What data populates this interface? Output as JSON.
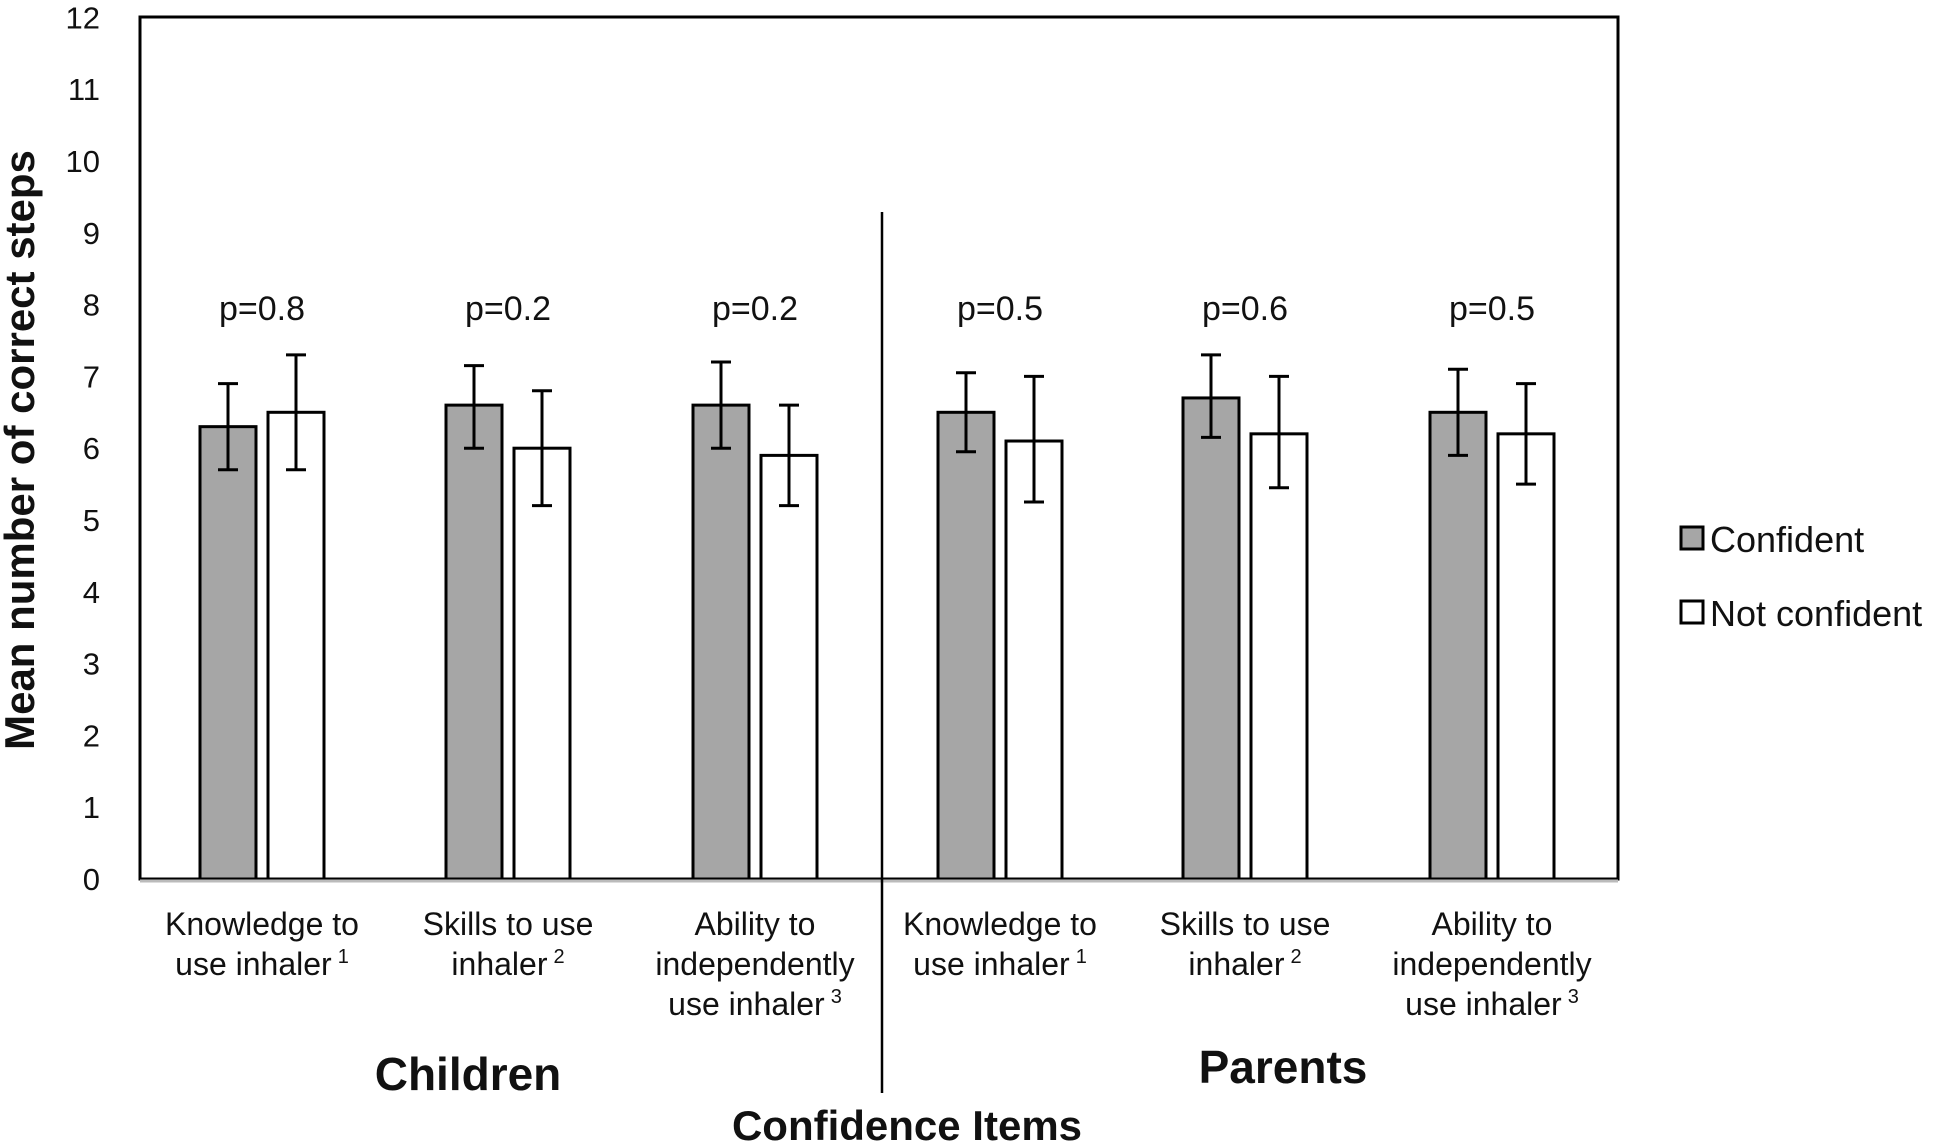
{
  "chart_data": {
    "type": "bar",
    "title": "",
    "ylabel": "Mean number of correct steps",
    "xlabel": "Confidence Items",
    "ylim": [
      0,
      12
    ],
    "yticks": [
      "0",
      "1",
      "2",
      "3",
      "4",
      "5",
      "6",
      "7",
      "8",
      "9",
      "10",
      "11",
      "12"
    ],
    "groups": [
      {
        "label": "Children",
        "category_indices": [
          0,
          1,
          2
        ]
      },
      {
        "label": "Parents",
        "category_indices": [
          3,
          4,
          5
        ]
      }
    ],
    "categories": [
      {
        "lines": [
          "Knowledge to",
          "use inhaler"
        ],
        "sup": "1"
      },
      {
        "lines": [
          "Skills to use",
          "inhaler"
        ],
        "sup": "2"
      },
      {
        "lines": [
          "Ability to",
          "independently",
          "use inhaler"
        ],
        "sup": "3"
      },
      {
        "lines": [
          "Knowledge to",
          "use inhaler"
        ],
        "sup": "1"
      },
      {
        "lines": [
          "Skills to use",
          "inhaler"
        ],
        "sup": "2"
      },
      {
        "lines": [
          "Ability to",
          "independently",
          "use inhaler"
        ],
        "sup": "3"
      }
    ],
    "p_values": [
      "p=0.8",
      "p=0.2",
      "p=0.2",
      "p=0.5",
      "p=0.6",
      "p=0.5"
    ],
    "series": [
      {
        "name": "Confident",
        "color": "#a6a6a6",
        "values": [
          6.3,
          6.6,
          6.6,
          6.5,
          6.7,
          6.5
        ],
        "err_low": [
          5.7,
          6.0,
          6.0,
          5.95,
          6.15,
          5.9
        ],
        "err_high": [
          6.9,
          7.15,
          7.2,
          7.05,
          7.3,
          7.1
        ]
      },
      {
        "name": "Not confident",
        "color": "#ffffff",
        "values": [
          6.5,
          6.0,
          5.9,
          6.1,
          6.2,
          6.2
        ],
        "err_low": [
          5.7,
          5.2,
          5.2,
          5.25,
          5.45,
          5.5
        ],
        "err_high": [
          7.3,
          6.8,
          6.6,
          7.0,
          7.0,
          6.9
        ]
      }
    ],
    "legend": "right"
  }
}
